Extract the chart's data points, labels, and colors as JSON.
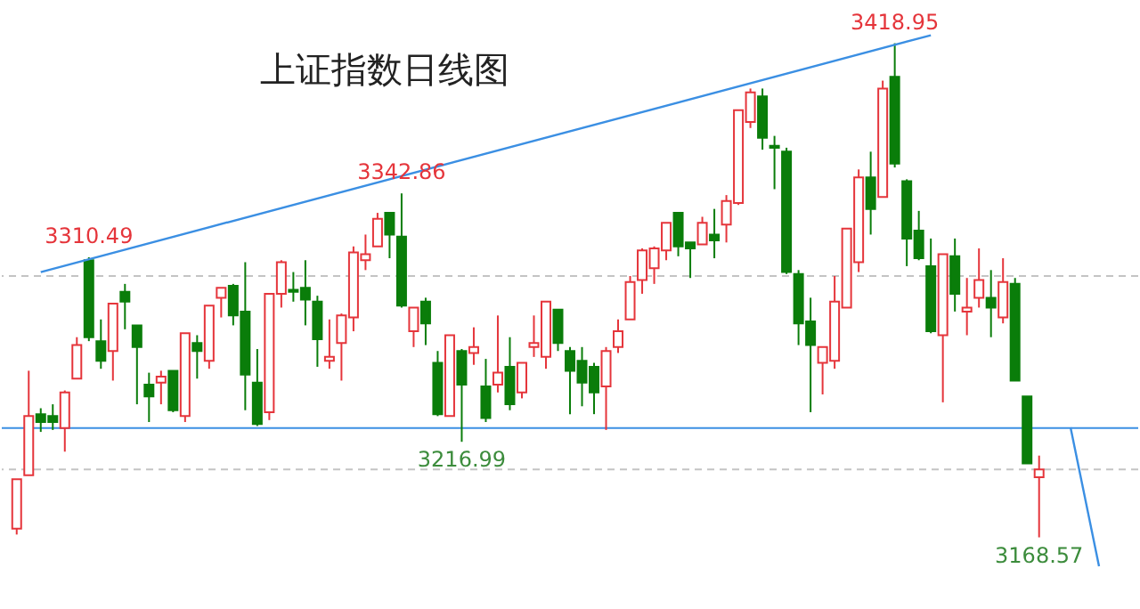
{
  "chart_data": {
    "type": "candlestick",
    "title": "上证指数日线图",
    "categories": [
      null,
      null,
      null,
      null,
      null,
      null,
      null,
      null,
      null,
      null,
      null,
      null,
      null,
      null,
      null,
      null,
      null,
      null,
      null,
      null,
      null,
      null,
      null,
      null,
      null,
      null,
      null,
      null,
      null,
      null,
      null,
      null,
      null,
      null,
      null,
      null,
      null,
      null,
      null,
      null,
      null,
      null,
      null,
      null,
      null,
      null,
      null,
      null,
      null,
      null,
      null,
      null,
      null,
      null,
      null,
      null,
      null,
      null,
      null,
      null,
      null,
      null,
      null,
      null,
      null,
      null,
      null,
      null,
      null,
      null,
      null,
      null,
      null,
      null,
      null,
      null,
      null,
      null,
      null,
      null,
      null,
      null,
      null,
      null,
      null,
      null
    ],
    "ohlc": [
      [
        3173,
        3198,
        3170,
        3198
      ],
      [
        3200,
        3253,
        3200,
        3230
      ],
      [
        3231,
        3234,
        3222,
        3227
      ],
      [
        3230,
        3236,
        3223,
        3227
      ],
      [
        3224,
        3243,
        3212,
        3242
      ],
      [
        3249,
        3270,
        3249,
        3266
      ],
      [
        3309,
        3310.49,
        3268,
        3270
      ],
      [
        3268,
        3279,
        3254,
        3258
      ],
      [
        3263,
        3287,
        3248,
        3287
      ],
      [
        3293,
        3297,
        3274,
        3288
      ],
      [
        3276,
        3276,
        3236,
        3265
      ],
      [
        3246,
        3252,
        3227,
        3240
      ],
      [
        3247,
        3253,
        3236,
        3250
      ],
      [
        3253,
        3253,
        3232,
        3233
      ],
      [
        3230,
        3272,
        3227,
        3272
      ],
      [
        3267,
        3271,
        3249,
        3263
      ],
      [
        3258,
        3286,
        3254,
        3286
      ],
      [
        3290,
        3295,
        3280,
        3295
      ],
      [
        3296,
        3297,
        3276,
        3281
      ],
      [
        3283,
        3308,
        3233,
        3251
      ],
      [
        3247,
        3264,
        3225,
        3226
      ],
      [
        3232,
        3292,
        3228,
        3292
      ],
      [
        3292,
        3309,
        3285,
        3308
      ],
      [
        3294,
        3303,
        3288,
        3293
      ],
      [
        3295,
        3309,
        3276,
        3289
      ],
      [
        3288,
        3291,
        3255,
        3269
      ],
      [
        3258,
        3279,
        3254,
        3260
      ],
      [
        3267,
        3282,
        3248,
        3281
      ],
      [
        3280,
        3316,
        3273,
        3313
      ],
      [
        3309,
        3322,
        3304,
        3312
      ],
      [
        3316,
        3333,
        3316,
        3330
      ],
      [
        3333,
        3333,
        3310,
        3322
      ],
      [
        3321,
        3342.86,
        3285,
        3286
      ],
      [
        3273,
        3285,
        3265,
        3285
      ],
      [
        3288,
        3290,
        3266,
        3277
      ],
      [
        3257,
        3263,
        3230,
        3231
      ],
      [
        3230,
        3271,
        3230,
        3271
      ],
      [
        3263,
        3264,
        3216.99,
        3246
      ],
      [
        3262,
        3275,
        3256,
        3265
      ],
      [
        3245,
        3259,
        3227,
        3229
      ],
      [
        3246,
        3281,
        3242,
        3252
      ],
      [
        3255,
        3270,
        3233,
        3236
      ],
      [
        3242,
        3257,
        3239,
        3257
      ],
      [
        3265,
        3281,
        3260,
        3267
      ],
      [
        3260,
        3288,
        3254,
        3288
      ],
      [
        3284,
        3284,
        3263,
        3267
      ],
      [
        3263,
        3265,
        3231,
        3253
      ],
      [
        3258,
        3265,
        3235,
        3247
      ],
      [
        3255,
        3257,
        3231,
        3242
      ],
      [
        3245,
        3265,
        3223,
        3263
      ],
      [
        3265,
        3279,
        3262,
        3273
      ],
      [
        3279,
        3301,
        3279,
        3298
      ],
      [
        3299,
        3315,
        3292,
        3314
      ],
      [
        3305,
        3316,
        3297,
        3315
      ],
      [
        3314,
        3328,
        3309,
        3328
      ],
      [
        3333,
        3333,
        3311,
        3316
      ],
      [
        3318,
        3318,
        3300,
        3315
      ],
      [
        3317,
        3331,
        3317,
        3328
      ],
      [
        3322,
        3335,
        3310,
        3319
      ],
      [
        3327,
        3342,
        3318,
        3339
      ],
      [
        3338,
        3385,
        3337,
        3385
      ],
      [
        3379,
        3396,
        3376,
        3394
      ],
      [
        3392,
        3396,
        3365,
        3371
      ],
      [
        3367,
        3372,
        3345,
        3366
      ],
      [
        3364,
        3366,
        3302,
        3303
      ],
      [
        3302,
        3304,
        3266,
        3277
      ],
      [
        3278,
        3290,
        3232,
        3266
      ],
      [
        3257,
        3265,
        3241,
        3265
      ],
      [
        3258,
        3301,
        3254,
        3288
      ],
      [
        3285,
        3325,
        3285,
        3325
      ],
      [
        3308,
        3355,
        3303,
        3351
      ],
      [
        3351,
        3364,
        3322,
        3335
      ],
      [
        3341,
        3400,
        3341,
        3396
      ],
      [
        3402,
        3418.95,
        3356,
        3358
      ],
      [
        3349,
        3350,
        3306,
        3320
      ],
      [
        3324,
        3334,
        3309,
        3310
      ],
      [
        3306,
        3320,
        3272,
        3273
      ],
      [
        3271,
        3312,
        3237,
        3312
      ],
      [
        3311,
        3320,
        3283,
        3292
      ],
      [
        3283,
        3300,
        3271,
        3285
      ],
      [
        3290,
        3315,
        3285,
        3299
      ],
      [
        3290,
        3304,
        3270,
        3285
      ],
      [
        3280,
        3310,
        3277,
        3298
      ],
      [
        3297,
        3300,
        3248,
        3248
      ],
      [
        3240,
        3240,
        3206,
        3206
      ],
      [
        3199,
        3210,
        3168.57,
        3203
      ]
    ],
    "colors": [
      "#e5353b",
      "#e5353b",
      "#0a7d0a",
      "#0a7d0a",
      "#e5353b",
      "#e5353b",
      "#0a7d0a",
      "#0a7d0a",
      "#e5353b",
      "#0a7d0a",
      "#0a7d0a",
      "#0a7d0a",
      "#e5353b",
      "#0a7d0a",
      "#e5353b",
      "#0a7d0a",
      "#e5353b",
      "#e5353b",
      "#0a7d0a",
      "#0a7d0a",
      "#0a7d0a",
      "#e5353b",
      "#e5353b",
      "#0a7d0a",
      "#0a7d0a",
      "#0a7d0a",
      "#e5353b",
      "#e5353b",
      "#e5353b",
      "#e5353b",
      "#e5353b",
      "#0a7d0a",
      "#0a7d0a",
      "#e5353b",
      "#0a7d0a",
      "#0a7d0a",
      "#e5353b",
      "#0a7d0a",
      "#e5353b",
      "#0a7d0a",
      "#e5353b",
      "#0a7d0a",
      "#e5353b",
      "#e5353b",
      "#e5353b",
      "#0a7d0a",
      "#0a7d0a",
      "#0a7d0a",
      "#0a7d0a",
      "#e5353b",
      "#e5353b",
      "#e5353b",
      "#e5353b",
      "#e5353b",
      "#e5353b",
      "#0a7d0a",
      "#0a7d0a",
      "#e5353b",
      "#0a7d0a",
      "#e5353b",
      "#e5353b",
      "#e5353b",
      "#0a7d0a",
      "#0a7d0a",
      "#0a7d0a",
      "#0a7d0a",
      "#0a7d0a",
      "#e5353b",
      "#e5353b",
      "#e5353b",
      "#e5353b",
      "#0a7d0a",
      "#e5353b",
      "#0a7d0a",
      "#0a7d0a",
      "#0a7d0a",
      "#0a7d0a",
      "#e5353b",
      "#0a7d0a",
      "#e5353b",
      "#e5353b",
      "#0a7d0a",
      "#e5353b",
      "#0a7d0a",
      "#0a7d0a",
      "#e5353b"
    ],
    "series": [
      {
        "type": "line",
        "color": "#3b8fe3",
        "values": [
          null,
          null,
          3303,
          null,
          null,
          null,
          null,
          null,
          null,
          null,
          null,
          null,
          null,
          null,
          null,
          null,
          null,
          null,
          null,
          null,
          null,
          null,
          null,
          null,
          null,
          null,
          null,
          null,
          null,
          null,
          null,
          null,
          null,
          null,
          null,
          null,
          null,
          null,
          null,
          null,
          null,
          null,
          null,
          null,
          null,
          null,
          null,
          null,
          null,
          null,
          null,
          null,
          null,
          null,
          null,
          null,
          null,
          null,
          null,
          null,
          null,
          null,
          null,
          null,
          null,
          null,
          null,
          null,
          null,
          null,
          null,
          null,
          null,
          null,
          null,
          null,
          3423,
          null,
          null,
          null,
          null,
          null,
          null,
          null,
          null,
          null
        ]
      }
    ],
    "ref_lines": [
      {
        "axis": "y",
        "value": 3301,
        "color": "#c4c4c4",
        "line_style": "dashed"
      },
      {
        "axis": "y",
        "value": 3203,
        "color": "#c4c4c4",
        "line_style": "dashed"
      },
      {
        "axis": "y",
        "value": 3224,
        "color": "#3b8fe3",
        "line_style": "solid"
      }
    ],
    "annotations": [
      {
        "text": "3310.49",
        "y": 3310.49
      },
      {
        "text": "3342.86",
        "y": 3342.86
      },
      {
        "text": "3418.95",
        "y": 3418.95
      },
      {
        "text": "3216.99",
        "y": 3216.99
      },
      {
        "text": "3168.57",
        "y": 3168.57
      }
    ]
  }
}
